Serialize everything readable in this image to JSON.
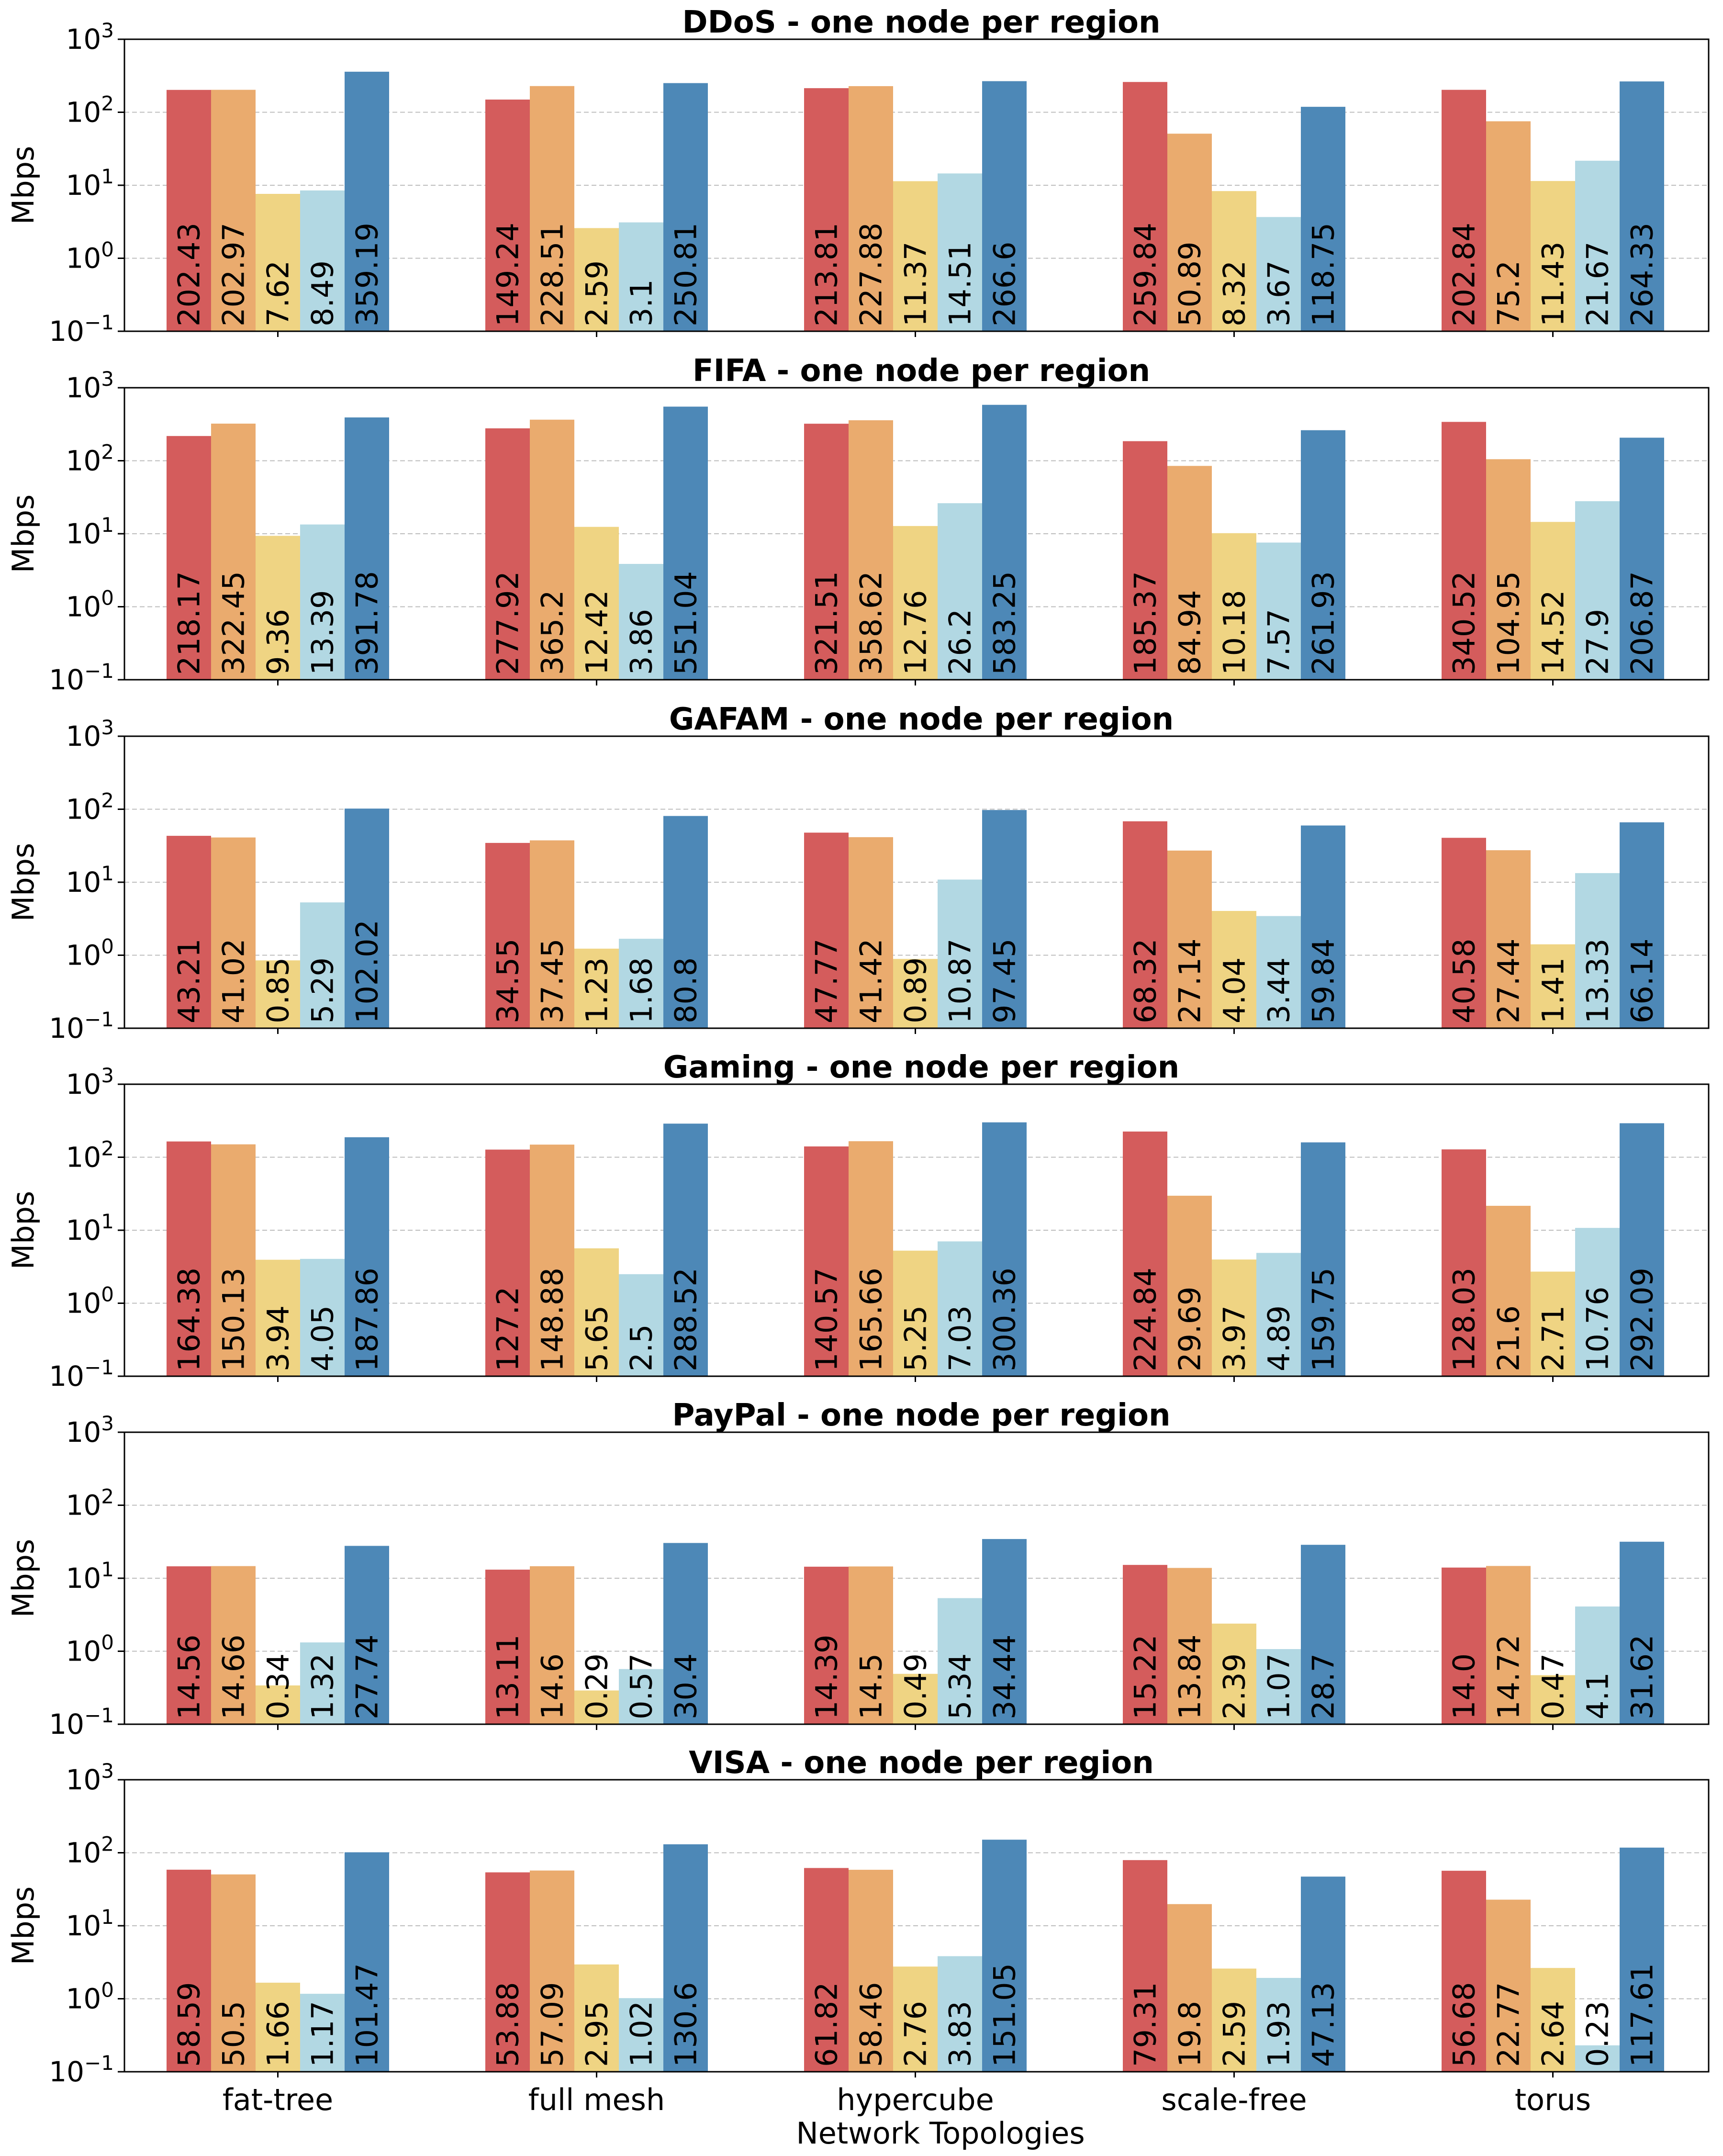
{
  "colors": [
    "#d45c5c",
    "#eaab6e",
    "#efd483",
    "#b2d8e3",
    "#4d88b7"
  ],
  "xlabel": "Network Topologies",
  "categories": [
    "fat-tree",
    "full mesh",
    "hypercube",
    "scale-free",
    "torus"
  ],
  "ylabel": "Mbps",
  "ytick_labels": [
    {
      "base": "10",
      "exp": "3"
    },
    {
      "base": "10",
      "exp": "2"
    },
    {
      "base": "10",
      "exp": "1"
    },
    {
      "base": "10",
      "exp": "0"
    },
    {
      "base": "10",
      "exp": "−1"
    }
  ],
  "chart_data": [
    {
      "type": "bar",
      "title": "DDoS - one node per region",
      "ylabel": "Mbps",
      "yscale": "log",
      "ylim": [
        0.1,
        1000
      ],
      "grid": "y-dashed",
      "categories": [
        "fat-tree",
        "full mesh",
        "hypercube",
        "scale-free",
        "torus"
      ],
      "values": [
        [
          202.43,
          202.97,
          7.62,
          8.49,
          359.19
        ],
        [
          149.24,
          228.51,
          2.59,
          3.1,
          250.81
        ],
        [
          213.81,
          227.88,
          11.37,
          14.51,
          266.6
        ],
        [
          259.84,
          50.89,
          8.32,
          3.67,
          118.75
        ],
        [
          202.84,
          75.2,
          11.43,
          21.67,
          264.33
        ]
      ],
      "labels": [
        [
          "202.43",
          "202.97",
          "7.62",
          "8.49",
          "359.19"
        ],
        [
          "149.24",
          "228.51",
          "2.59",
          "3.1",
          "250.81"
        ],
        [
          "213.81",
          "227.88",
          "11.37",
          "14.51",
          "266.6"
        ],
        [
          "259.84",
          "50.89",
          "8.32",
          "3.67",
          "118.75"
        ],
        [
          "202.84",
          "75.2",
          "11.43",
          "21.67",
          "264.33"
        ]
      ]
    },
    {
      "type": "bar",
      "title": "FIFA - one node per region",
      "ylabel": "Mbps",
      "yscale": "log",
      "ylim": [
        0.1,
        1000
      ],
      "grid": "y-dashed",
      "categories": [
        "fat-tree",
        "full mesh",
        "hypercube",
        "scale-free",
        "torus"
      ],
      "values": [
        [
          218.17,
          322.45,
          9.36,
          13.39,
          391.78
        ],
        [
          277.92,
          365.2,
          12.42,
          3.86,
          551.04
        ],
        [
          321.51,
          358.62,
          12.76,
          26.2,
          583.25
        ],
        [
          185.37,
          84.94,
          10.18,
          7.57,
          261.93
        ],
        [
          340.52,
          104.95,
          14.52,
          27.9,
          206.87
        ]
      ],
      "labels": [
        [
          "218.17",
          "322.45",
          "9.36",
          "13.39",
          "391.78"
        ],
        [
          "277.92",
          "365.2",
          "12.42",
          "3.86",
          "551.04"
        ],
        [
          "321.51",
          "358.62",
          "12.76",
          "26.2",
          "583.25"
        ],
        [
          "185.37",
          "84.94",
          "10.18",
          "7.57",
          "261.93"
        ],
        [
          "340.52",
          "104.95",
          "14.52",
          "27.9",
          "206.87"
        ]
      ]
    },
    {
      "type": "bar",
      "title": "GAFAM - one node per region",
      "ylabel": "Mbps",
      "yscale": "log",
      "ylim": [
        0.1,
        1000
      ],
      "grid": "y-dashed",
      "categories": [
        "fat-tree",
        "full mesh",
        "hypercube",
        "scale-free",
        "torus"
      ],
      "values": [
        [
          43.21,
          41.02,
          0.85,
          5.29,
          102.02
        ],
        [
          34.55,
          37.45,
          1.23,
          1.68,
          80.8
        ],
        [
          47.77,
          41.42,
          0.89,
          10.87,
          97.45
        ],
        [
          68.32,
          27.14,
          4.04,
          3.44,
          59.84
        ],
        [
          40.58,
          27.44,
          1.41,
          13.33,
          66.14
        ]
      ],
      "labels": [
        [
          "43.21",
          "41.02",
          "0.85",
          "5.29",
          "102.02"
        ],
        [
          "34.55",
          "37.45",
          "1.23",
          "1.68",
          "80.8"
        ],
        [
          "47.77",
          "41.42",
          "0.89",
          "10.87",
          "97.45"
        ],
        [
          "68.32",
          "27.14",
          "4.04",
          "3.44",
          "59.84"
        ],
        [
          "40.58",
          "27.44",
          "1.41",
          "13.33",
          "66.14"
        ]
      ]
    },
    {
      "type": "bar",
      "title": "Gaming - one node per region",
      "ylabel": "Mbps",
      "yscale": "log",
      "ylim": [
        0.1,
        1000
      ],
      "grid": "y-dashed",
      "categories": [
        "fat-tree",
        "full mesh",
        "hypercube",
        "scale-free",
        "torus"
      ],
      "values": [
        [
          164.38,
          150.13,
          3.94,
          4.05,
          187.86
        ],
        [
          127.2,
          148.88,
          5.65,
          2.5,
          288.52
        ],
        [
          140.57,
          165.66,
          5.25,
          7.03,
          300.36
        ],
        [
          224.84,
          29.69,
          3.97,
          4.89,
          159.75
        ],
        [
          128.03,
          21.6,
          2.71,
          10.76,
          292.09
        ]
      ],
      "labels": [
        [
          "164.38",
          "150.13",
          "3.94",
          "4.05",
          "187.86"
        ],
        [
          "127.2",
          "148.88",
          "5.65",
          "2.5",
          "288.52"
        ],
        [
          "140.57",
          "165.66",
          "5.25",
          "7.03",
          "300.36"
        ],
        [
          "224.84",
          "29.69",
          "3.97",
          "4.89",
          "159.75"
        ],
        [
          "128.03",
          "21.6",
          "2.71",
          "10.76",
          "292.09"
        ]
      ]
    },
    {
      "type": "bar",
      "title": "PayPal - one node per region",
      "ylabel": "Mbps",
      "yscale": "log",
      "ylim": [
        0.1,
        1000
      ],
      "grid": "y-dashed",
      "categories": [
        "fat-tree",
        "full mesh",
        "hypercube",
        "scale-free",
        "torus"
      ],
      "values": [
        [
          14.56,
          14.66,
          0.34,
          1.32,
          27.74
        ],
        [
          13.11,
          14.6,
          0.29,
          0.57,
          30.4
        ],
        [
          14.39,
          14.5,
          0.49,
          5.34,
          34.44
        ],
        [
          15.22,
          13.84,
          2.39,
          1.07,
          28.7
        ],
        [
          14.0,
          14.72,
          0.47,
          4.1,
          31.62
        ]
      ],
      "labels": [
        [
          "14.56",
          "14.66",
          "0.34",
          "1.32",
          "27.74"
        ],
        [
          "13.11",
          "14.6",
          "0.29",
          "0.57",
          "30.4"
        ],
        [
          "14.39",
          "14.5",
          "0.49",
          "5.34",
          "34.44"
        ],
        [
          "15.22",
          "13.84",
          "2.39",
          "1.07",
          "28.7"
        ],
        [
          "14.0",
          "14.72",
          "0.47",
          "4.1",
          "31.62"
        ]
      ]
    },
    {
      "type": "bar",
      "title": "VISA - one node per region",
      "ylabel": "Mbps",
      "yscale": "log",
      "ylim": [
        0.1,
        1000
      ],
      "grid": "y-dashed",
      "categories": [
        "fat-tree",
        "full mesh",
        "hypercube",
        "scale-free",
        "torus"
      ],
      "values": [
        [
          58.59,
          50.5,
          1.66,
          1.17,
          101.47
        ],
        [
          53.88,
          57.09,
          2.95,
          1.02,
          130.6
        ],
        [
          61.82,
          58.46,
          2.76,
          3.83,
          151.05
        ],
        [
          79.31,
          19.8,
          2.59,
          1.93,
          47.13
        ],
        [
          56.68,
          22.77,
          2.64,
          0.23,
          117.61
        ]
      ],
      "labels": [
        [
          "58.59",
          "50.5",
          "1.66",
          "1.17",
          "101.47"
        ],
        [
          "53.88",
          "57.09",
          "2.95",
          "1.02",
          "130.6"
        ],
        [
          "61.82",
          "58.46",
          "2.76",
          "3.83",
          "151.05"
        ],
        [
          "79.31",
          "19.8",
          "2.59",
          "1.93",
          "47.13"
        ],
        [
          "56.68",
          "22.77",
          "2.64",
          "0.23",
          "117.61"
        ]
      ]
    }
  ]
}
